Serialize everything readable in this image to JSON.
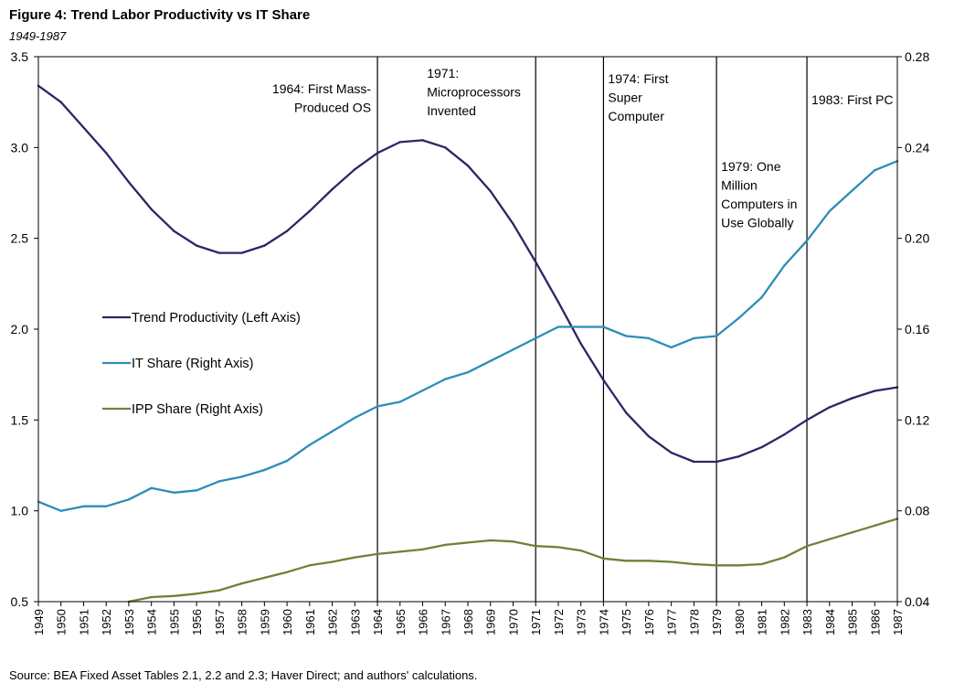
{
  "title": "Figure 4: Trend Labor Productivity vs IT Share",
  "subtitle": "1949-1987",
  "source": "Source: BEA Fixed Asset Tables 2.1, 2.2 and 2.3; Haver Direct; and authors' calculations.",
  "colors": {
    "trend": "#2b2668",
    "it": "#2e8db5",
    "ipp": "#6b8337",
    "axis": "#000000"
  },
  "chart_data": {
    "type": "line",
    "title": "Figure 4: Trend Labor Productivity vs IT Share",
    "subtitle": "1949-1987",
    "x": [
      1949,
      1950,
      1951,
      1952,
      1953,
      1954,
      1955,
      1956,
      1957,
      1958,
      1959,
      1960,
      1961,
      1962,
      1963,
      1964,
      1965,
      1966,
      1967,
      1968,
      1969,
      1970,
      1971,
      1972,
      1973,
      1974,
      1975,
      1976,
      1977,
      1978,
      1979,
      1980,
      1981,
      1982,
      1983,
      1984,
      1985,
      1986,
      1987
    ],
    "y_left": {
      "min": 0.5,
      "max": 3.5,
      "ticks": [
        "0.5",
        "1.0",
        "1.5",
        "2.0",
        "2.5",
        "3.0",
        "3.5"
      ]
    },
    "y_right": {
      "min": 0.04,
      "max": 0.28,
      "ticks": [
        "0.04",
        "0.08",
        "0.12",
        "0.16",
        "0.20",
        "0.24",
        "0.28"
      ]
    },
    "series": [
      {
        "key": "trend",
        "name": "Trend Productivity (Left Axis)",
        "axis": "left",
        "values": [
          3.34,
          3.25,
          3.11,
          2.97,
          2.81,
          2.66,
          2.54,
          2.46,
          2.42,
          2.42,
          2.46,
          2.54,
          2.65,
          2.77,
          2.88,
          2.97,
          3.03,
          3.04,
          3.0,
          2.9,
          2.76,
          2.58,
          2.37,
          2.15,
          1.92,
          1.72,
          1.54,
          1.41,
          1.32,
          1.27,
          1.27,
          1.3,
          1.35,
          1.42,
          1.5,
          1.57,
          1.62,
          1.66,
          1.68
        ]
      },
      {
        "key": "it",
        "name": "IT Share (Right Axis)",
        "axis": "right",
        "values": [
          0.084,
          0.08,
          0.082,
          0.082,
          0.085,
          0.09,
          0.088,
          0.089,
          0.093,
          0.095,
          0.098,
          0.102,
          0.109,
          0.115,
          0.121,
          0.126,
          0.128,
          0.133,
          0.138,
          0.141,
          0.146,
          0.151,
          0.156,
          0.161,
          0.161,
          0.161,
          0.157,
          0.156,
          0.152,
          0.156,
          0.157,
          0.165,
          0.174,
          0.188,
          0.199,
          0.212,
          0.221,
          0.23,
          0.234
        ]
      },
      {
        "key": "ipp",
        "name": "IPP Share (Right Axis)",
        "axis": "right",
        "values": [
          null,
          null,
          null,
          null,
          0.04,
          0.042,
          0.0425,
          0.0435,
          0.045,
          0.048,
          0.0505,
          0.053,
          0.056,
          0.0575,
          0.0595,
          0.061,
          0.062,
          0.063,
          0.065,
          0.066,
          0.067,
          0.0665,
          0.0645,
          0.064,
          0.0625,
          0.059,
          0.058,
          0.058,
          0.0575,
          0.0565,
          0.056,
          0.056,
          0.0565,
          0.0595,
          0.0645,
          0.0675,
          0.0705,
          0.0735,
          0.0765
        ]
      }
    ],
    "events": [
      {
        "year": 1964,
        "lines": [
          "1964: First Mass-",
          "Produced OS"
        ],
        "anchor": "end"
      },
      {
        "year": 1971,
        "lines": [
          "1971:",
          "Microprocessors",
          "Invented"
        ],
        "anchor": "end"
      },
      {
        "year": 1974,
        "lines": [
          "1974: First",
          "Super",
          "Computer"
        ],
        "anchor": "start"
      },
      {
        "year": 1979,
        "lines": [
          "1979: One",
          "Million",
          "Computers in",
          "Use Globally"
        ],
        "anchor": "start"
      },
      {
        "year": 1983,
        "lines": [
          "1983: First PC"
        ],
        "anchor": "start"
      }
    ],
    "legend_position": "center-left"
  }
}
